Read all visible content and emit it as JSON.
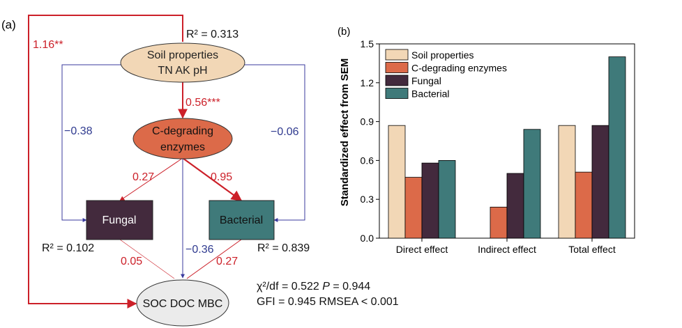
{
  "colors": {
    "soil": "#f2d7b6",
    "enzyme": "#dc6a49",
    "fungal": "#432a3d",
    "bacterial": "#3f7a7a",
    "carbon": "#ebebeb",
    "positive_path": "#cc2029",
    "negative_path": "#3a3a9e",
    "label_red": "#cc2029",
    "label_blue": "#2f3a8f"
  },
  "panel_a": {
    "label": "(a)",
    "nodes": {
      "soil_line1": "Soil properties",
      "soil_line2": "TN  AK  pH",
      "enzyme_line1": "C-degrading",
      "enzyme_line2": "enzymes",
      "fungal": "Fungal",
      "bacterial": "Bacterial",
      "carbon": "SOC  DOC  MBC"
    },
    "r2": {
      "soil": "R² = 0.313",
      "fungal": "R² = 0.102",
      "bacterial": "R² = 0.839"
    },
    "paths": {
      "soil_to_carbon": "1.16**",
      "soil_to_enzyme": "0.56***",
      "soil_to_fungal": "−0.38",
      "soil_to_bacterial": "−0.06",
      "enzyme_to_fungal": "0.27",
      "enzyme_to_bacterial": "0.95",
      "enzyme_to_carbon": "−0.36",
      "fungal_to_carbon": "0.05",
      "bacterial_to_carbon": "0.27"
    },
    "fit": {
      "chi_prefix": "χ²/df = 0.522  ",
      "p_symbol": "P",
      "p_value": " = 0.944",
      "line2": "GFI = 0.945  RMSEA < 0.001"
    }
  },
  "chart_data": {
    "type": "bar",
    "panel_label": "(b)",
    "ylabel": "Standardized effect from SEM",
    "xlabel": "",
    "categories": [
      "Direct effect",
      "Indirect effect",
      "Total effect"
    ],
    "series": [
      {
        "name": "Soil properties",
        "color": "#f2d7b6",
        "values": [
          0.87,
          0,
          0.87
        ]
      },
      {
        "name": "C-degrading enzymes",
        "color": "#dc6a49",
        "values": [
          0.47,
          0.24,
          0.51
        ]
      },
      {
        "name": "Fungal",
        "color": "#432a3d",
        "values": [
          0.58,
          0.5,
          0.87
        ]
      },
      {
        "name": "Bacterial",
        "color": "#3f7a7a",
        "values": [
          0.6,
          0.84,
          1.4
        ]
      }
    ],
    "ylim": [
      0,
      1.5
    ],
    "yticks": [
      "0.0",
      "0.3",
      "0.6",
      "0.9",
      "1.2",
      "1.5"
    ],
    "legend_position": "top-left",
    "grid": false
  }
}
